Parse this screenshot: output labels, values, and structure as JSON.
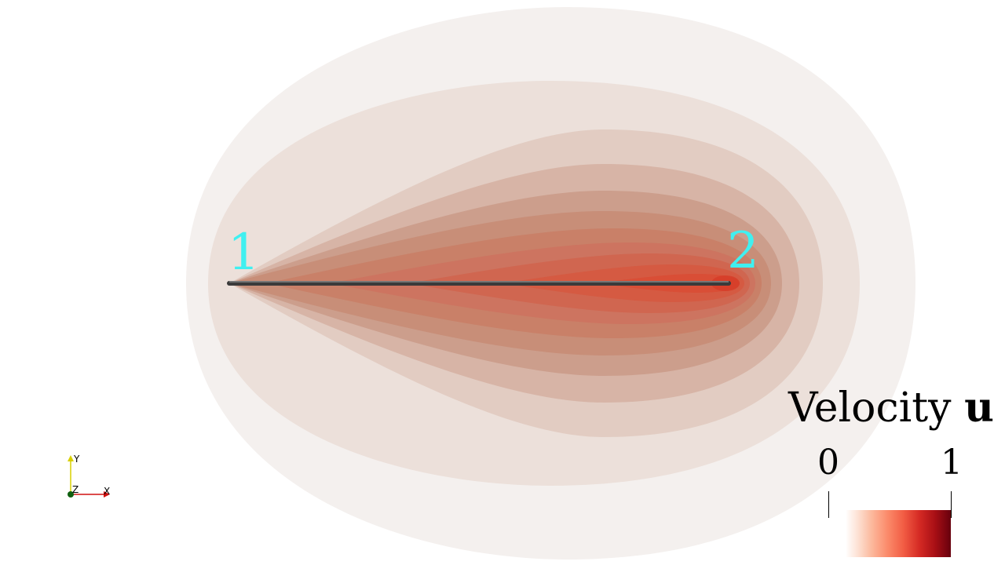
{
  "scene": {
    "nodes": [
      {
        "id": "1",
        "label": "1"
      },
      {
        "id": "2",
        "label": "2"
      }
    ],
    "contour_colors": [
      "#f4f0ee",
      "#ece0da",
      "#e2ccc2",
      "#d7b4a6",
      "#cc9e8c",
      "#c88e78",
      "#c98068",
      "#cd7460",
      "#d06650",
      "#d55a42",
      "#d94e36"
    ]
  },
  "legend": {
    "title": "Velocity",
    "title_symbol": "u",
    "min_label": "0",
    "max_label": "1",
    "colormap": "Reds",
    "range": [
      0,
      1
    ]
  },
  "axes": {
    "x_label": "X",
    "y_label": "Y",
    "z_label": "Z"
  }
}
